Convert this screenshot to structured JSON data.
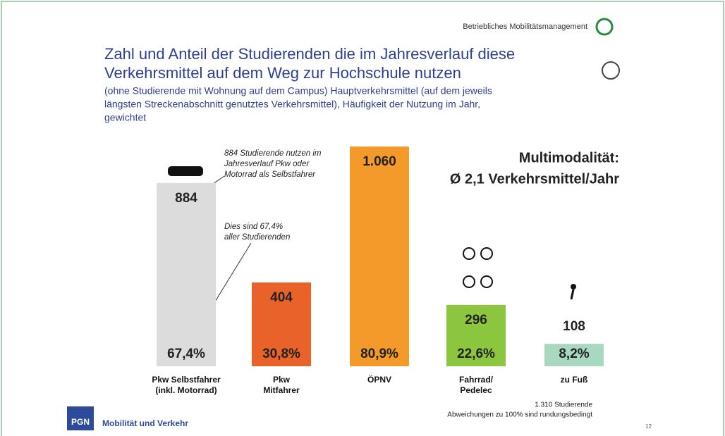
{
  "header": "Betriebliches Mobilitätsmanagement",
  "chart_data": {
    "type": "bar",
    "title": [
      "Zahl und Anteil der Studierenden die im Jahresverlauf diese",
      "Verkehrsmittel auf dem Weg zur Hochschule nutzen"
    ],
    "subtitle": [
      "(ohne Studierende mit Wohnung auf dem Campus) Hauptverkehrsmittel (auf dem jeweils",
      "längsten Streckenabschnitt genutztes Verkehrsmittel), Häufigkeit der Nutzung im Jahr,",
      "gewichtet"
    ],
    "categories": [
      [
        "Pkw Selbstfahrer",
        "(inkl. Motorrad)"
      ],
      [
        "Pkw",
        "Mitfahrer"
      ],
      [
        "ÖPNV"
      ],
      [
        "Fahrrad/",
        "Pedelec"
      ],
      [
        "zu Fuß"
      ]
    ],
    "values": [
      884,
      404,
      1060,
      296,
      108
    ],
    "value_labels": [
      "884",
      "404",
      "1.060",
      "296",
      "108"
    ],
    "shares": [
      67.4,
      30.8,
      80.9,
      22.6,
      8.2
    ],
    "share_labels": [
      "67,4%",
      "30,8%",
      "80,9%",
      "22,6%",
      "8,2%"
    ],
    "colors": [
      "#dcdcdc",
      "#e8622a",
      "#f39a2b",
      "#8cc63f",
      "#a8d8c0"
    ],
    "annotations": [
      [
        "884 Studierende nutzen im",
        "Jahresverlauf Pkw oder",
        "Motorrad als Selbstfahrer"
      ],
      [
        "Dies sind 67,4%",
        "aller Studierenden"
      ]
    ],
    "callout": [
      "Multimodalität:",
      "Ø 2,1 Verkehrsmittel/Jahr"
    ],
    "notes": [
      "1.310 Studierende",
      "Abweichungen zu 100% sind rundungsbedingt"
    ]
  },
  "footer": {
    "logo": "PGN",
    "name": "Mobilität und Verkehr",
    "page": "12"
  }
}
